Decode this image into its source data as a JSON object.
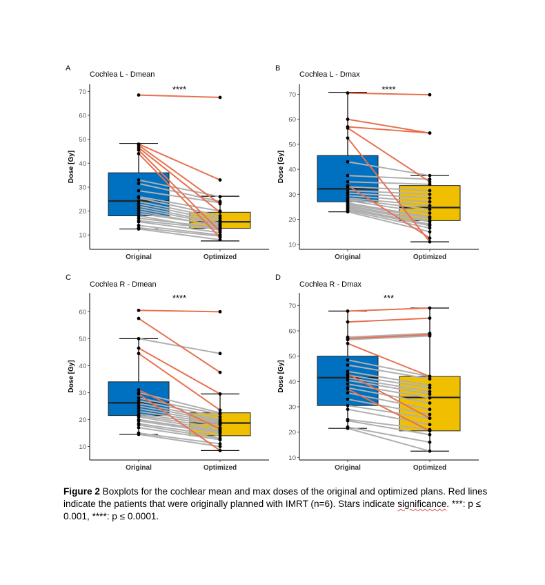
{
  "chart_data": [
    {
      "type": "box",
      "panel_label": "A",
      "title": "Cochlea L - Dmean",
      "ylabel": "Dose [Gy]",
      "categories": [
        "Original",
        "Optimized"
      ],
      "ylim": [
        4,
        73
      ],
      "yticks": [
        10,
        20,
        30,
        40,
        50,
        60,
        70
      ],
      "significance": "****",
      "boxes": [
        {
          "name": "Original",
          "q1": 18,
          "median": 24.2,
          "q3": 36,
          "whisker_low": 12.5,
          "whisker_high": 48.3
        },
        {
          "name": "Optimized",
          "q1": 12.8,
          "median": 15.5,
          "q3": 19.5,
          "whisker_low": 7.5,
          "whisker_high": 26.2
        }
      ],
      "pairs_imrt": [
        [
          68.5,
          67.5
        ],
        [
          48.0,
          33.0
        ],
        [
          47.5,
          23.0
        ],
        [
          46.5,
          19.5
        ],
        [
          45.5,
          11.5
        ],
        [
          44.0,
          9.0
        ]
      ],
      "pairs_other": [
        [
          33.0,
          26.0
        ],
        [
          31.5,
          24.0
        ],
        [
          28.5,
          23.5
        ],
        [
          26.0,
          20.0
        ],
        [
          25.5,
          18.0
        ],
        [
          24.0,
          17.0
        ],
        [
          23.0,
          16.0
        ],
        [
          22.0,
          15.0
        ],
        [
          21.0,
          14.5
        ],
        [
          20.0,
          13.5
        ],
        [
          19.0,
          14.0
        ],
        [
          18.0,
          12.0
        ],
        [
          17.0,
          13.0
        ],
        [
          16.0,
          12.5
        ],
        [
          15.5,
          11.0
        ],
        [
          14.0,
          10.0
        ],
        [
          13.0,
          9.5
        ],
        [
          12.5,
          8.0
        ]
      ]
    },
    {
      "type": "box",
      "panel_label": "B",
      "title": "Cochlea L - Dmax",
      "ylabel": "Dose [Gy]",
      "categories": [
        "Original",
        "Optimized"
      ],
      "ylim": [
        8,
        74
      ],
      "yticks": [
        10,
        20,
        30,
        40,
        50,
        60,
        70
      ],
      "significance": "****",
      "boxes": [
        {
          "name": "Original",
          "q1": 27,
          "median": 32.2,
          "q3": 45.5,
          "whisker_low": 23,
          "whisker_high": 70.8
        },
        {
          "name": "Optimized",
          "q1": 19.5,
          "median": 24.7,
          "q3": 33.5,
          "whisker_low": 11,
          "whisker_high": 37.5
        }
      ],
      "pairs_imrt": [
        [
          70.5,
          69.8
        ],
        [
          60.0,
          54.5
        ],
        [
          57.0,
          54.5
        ],
        [
          56.5,
          35.0
        ],
        [
          52.5,
          11.0
        ],
        [
          33.5,
          12.5
        ]
      ],
      "pairs_other": [
        [
          43.0,
          37.5
        ],
        [
          37.5,
          36.0
        ],
        [
          35.0,
          34.0
        ],
        [
          33.0,
          31.5
        ],
        [
          31.5,
          30.0
        ],
        [
          30.5,
          28.5
        ],
        [
          29.5,
          27.0
        ],
        [
          28.5,
          25.5
        ],
        [
          28.0,
          24.0
        ],
        [
          27.5,
          22.5
        ],
        [
          26.5,
          21.0
        ],
        [
          26.0,
          20.5
        ],
        [
          25.5,
          19.5
        ],
        [
          25.0,
          19.0
        ],
        [
          24.5,
          18.0
        ],
        [
          24.0,
          17.5
        ],
        [
          23.5,
          16.5
        ],
        [
          23.0,
          15.0
        ]
      ]
    },
    {
      "type": "box",
      "panel_label": "C",
      "title": "Cochlea R - Dmean",
      "ylabel": "Dose [Gy]",
      "categories": [
        "Original",
        "Optimized"
      ],
      "ylim": [
        5,
        67
      ],
      "yticks": [
        10,
        20,
        30,
        40,
        50,
        60
      ],
      "significance": "****",
      "boxes": [
        {
          "name": "Original",
          "q1": 21.5,
          "median": 26.2,
          "q3": 34,
          "whisker_low": 14.5,
          "whisker_high": 50
        },
        {
          "name": "Optimized",
          "q1": 14,
          "median": 18.7,
          "q3": 22.5,
          "whisker_low": 8.5,
          "whisker_high": 29.5
        }
      ],
      "pairs_imrt": [
        [
          60.5,
          60.0
        ],
        [
          57.5,
          37.5
        ],
        [
          46.5,
          29.5
        ],
        [
          44.5,
          23.5
        ],
        [
          31.0,
          16.5
        ],
        [
          29.5,
          8.5
        ]
      ],
      "pairs_other": [
        [
          50.0,
          44.5
        ],
        [
          30.0,
          22.5
        ],
        [
          28.0,
          22.0
        ],
        [
          27.0,
          21.0
        ],
        [
          26.0,
          20.0
        ],
        [
          25.0,
          19.5
        ],
        [
          24.0,
          19.0
        ],
        [
          23.0,
          18.5
        ],
        [
          22.0,
          18.0
        ],
        [
          21.5,
          17.0
        ],
        [
          21.0,
          16.0
        ],
        [
          20.0,
          15.5
        ],
        [
          19.5,
          15.0
        ],
        [
          18.5,
          14.0
        ],
        [
          18.0,
          13.0
        ],
        [
          17.0,
          12.5
        ],
        [
          15.0,
          11.0
        ],
        [
          14.5,
          10.0
        ]
      ]
    },
    {
      "type": "box",
      "panel_label": "D",
      "title": "Cochlea R - Dmax",
      "ylabel": "Dose [Gy]",
      "categories": [
        "Original",
        "Optimized"
      ],
      "ylim": [
        9,
        75
      ],
      "yticks": [
        10,
        20,
        30,
        40,
        50,
        60,
        70
      ],
      "significance": "***",
      "boxes": [
        {
          "name": "Original",
          "q1": 30.5,
          "median": 41.5,
          "q3": 50,
          "whisker_low": 21.5,
          "whisker_high": 67.8
        },
        {
          "name": "Optimized",
          "q1": 20.5,
          "median": 33.7,
          "q3": 42,
          "whisker_low": 12.5,
          "whisker_high": 69
        }
      ],
      "pairs_imrt": [
        [
          67.8,
          69.0
        ],
        [
          63.5,
          65.0
        ],
        [
          57.0,
          58.5
        ],
        [
          55.0,
          42.0
        ],
        [
          43.0,
          25.5
        ],
        [
          37.0,
          20.5
        ]
      ],
      "pairs_other": [
        [
          57.5,
          59.0
        ],
        [
          56.5,
          58.0
        ],
        [
          48.5,
          42.0
        ],
        [
          46.5,
          41.0
        ],
        [
          44.0,
          38.5
        ],
        [
          42.5,
          37.5
        ],
        [
          41.5,
          36.0
        ],
        [
          40.5,
          35.0
        ],
        [
          39.0,
          33.5
        ],
        [
          37.5,
          31.5
        ],
        [
          35.5,
          29.0
        ],
        [
          33.0,
          27.0
        ],
        [
          30.5,
          25.5
        ],
        [
          29.0,
          23.0
        ],
        [
          25.0,
          21.0
        ],
        [
          24.5,
          19.0
        ],
        [
          22.0,
          16.0
        ],
        [
          21.5,
          12.5
        ]
      ]
    }
  ],
  "colors": {
    "original_box": "#0070c0",
    "optimized_box": "#f0c000",
    "imrt_line": "#e8704f",
    "other_line": "#b0b0b0",
    "point": "#000000"
  },
  "caption": {
    "label": "Figure 2",
    "text_part1": " Boxplots for the cochlear mean and max doses of the original and optimized plans. Red lines indicate the patients that were originally planned with IMRT (n=6). Stars indicate ",
    "text_part2": "significance",
    "text_part3": ". ***: p ≤ 0.001, ****: p ≤ 0.0001."
  }
}
